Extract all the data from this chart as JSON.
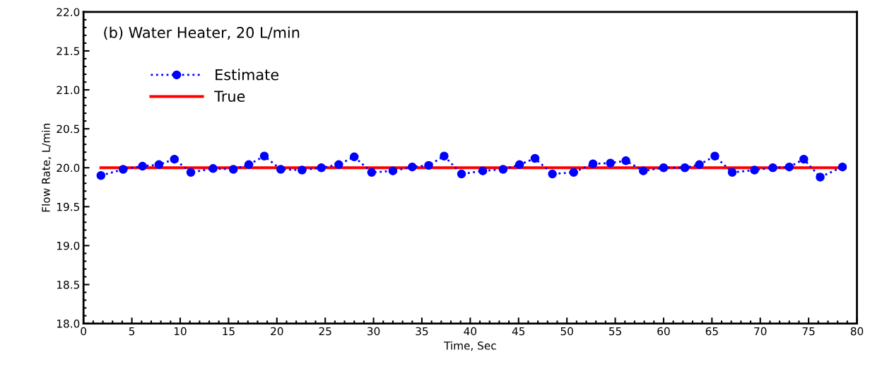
{
  "chart_data": {
    "type": "line",
    "xlabel": "Time, Sec",
    "ylabel": "Flow Rate, L/min",
    "annotations": [
      "(b) Water Heater, 20 L/min"
    ],
    "xlim": [
      0,
      80
    ],
    "xticks": [
      0,
      5,
      10,
      15,
      20,
      25,
      30,
      35,
      40,
      45,
      50,
      55,
      60,
      65,
      70,
      75,
      80
    ],
    "ylim": [
      18.0,
      22.0
    ],
    "yticks": [
      {
        "value": 18,
        "label": "18.0"
      },
      {
        "value": 18.5,
        "label": "18.5"
      },
      {
        "value": 19,
        "label": "19.0"
      },
      {
        "value": 19.5,
        "label": "19.5"
      },
      {
        "value": 20,
        "label": "20.0"
      },
      {
        "value": 20.5,
        "label": "20.5"
      },
      {
        "value": 21,
        "label": "21.0"
      },
      {
        "value": 21.5,
        "label": "21.5"
      },
      {
        "value": 22,
        "label": "22.0"
      }
    ],
    "grid": false,
    "legend": "top left",
    "series": [
      {
        "name": "Estimate",
        "color": "#0000ff",
        "marker": "circle",
        "line_style": "dotted",
        "x": [
          1.8,
          4.1,
          6.1,
          7.8,
          9.4,
          11.1,
          13.4,
          15.5,
          17.1,
          18.7,
          20.4,
          22.6,
          24.6,
          26.4,
          28.0,
          29.8,
          32.0,
          34.0,
          35.7,
          37.3,
          39.1,
          41.3,
          43.4,
          45.1,
          46.7,
          48.5,
          50.7,
          52.7,
          54.5,
          56.1,
          57.9,
          60.0,
          62.2,
          63.7,
          65.3,
          67.1,
          69.4,
          71.3,
          73.0,
          74.5,
          76.2,
          78.5
        ],
        "values": [
          19.9,
          19.98,
          20.02,
          20.04,
          20.11,
          19.94,
          19.99,
          19.98,
          20.04,
          20.15,
          19.98,
          19.97,
          20.0,
          20.04,
          20.14,
          19.94,
          19.96,
          20.01,
          20.03,
          20.15,
          19.92,
          19.96,
          19.98,
          20.04,
          20.12,
          19.92,
          19.94,
          20.05,
          20.06,
          20.09,
          19.96,
          20.0,
          20.0,
          20.04,
          20.15,
          19.94,
          19.97,
          20.0,
          20.01,
          20.11,
          19.88,
          20.01
        ]
      },
      {
        "name": "True",
        "color": "#ff0000",
        "marker": "none",
        "line_style": "solid",
        "x": [
          1.8,
          78.5
        ],
        "values": [
          20.0,
          20.0
        ]
      }
    ]
  }
}
